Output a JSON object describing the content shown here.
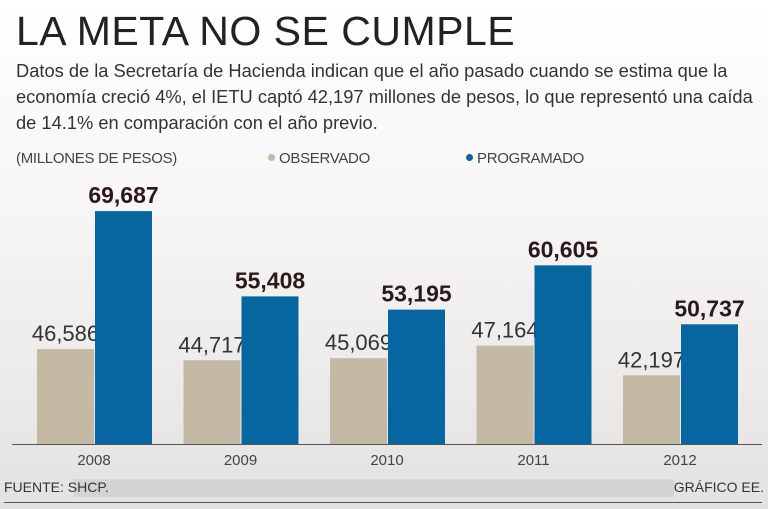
{
  "colors": {
    "observado": "#c4b9a5",
    "programado": "#0765a0",
    "axis": "#555555"
  },
  "chart_data": {
    "type": "bar",
    "title": "LA META NO SE CUMPLE",
    "subtitle": "Datos de la Secretaría de Hacienda indican que el año pasado cuando se estima que la economía creció 4%, el IETU captó 42,197 millones de pesos, lo que representó una caída de 14.1% en comparación con el año previo.",
    "ylabel": "(MILLONES DE PESOS)",
    "categories": [
      "2008",
      "2009",
      "2010",
      "2011",
      "2012"
    ],
    "series": [
      {
        "name": "OBSERVADO",
        "values": [
          46586,
          44717,
          45069,
          47164,
          42197
        ],
        "labels": [
          "46,586",
          "44,717",
          "45,069",
          "47,164",
          "42,197"
        ]
      },
      {
        "name": "PROGRAMADO",
        "values": [
          69687,
          55408,
          53195,
          60605,
          50737
        ],
        "labels": [
          "69,687",
          "55,408",
          "53,195",
          "60,605",
          "50,737"
        ]
      }
    ],
    "ylim": [
      30700,
      75000
    ],
    "grid": false,
    "legend": "top"
  },
  "footer": {
    "source": "FUENTE: SHCP.",
    "credit": "GRÁFICO EE."
  }
}
